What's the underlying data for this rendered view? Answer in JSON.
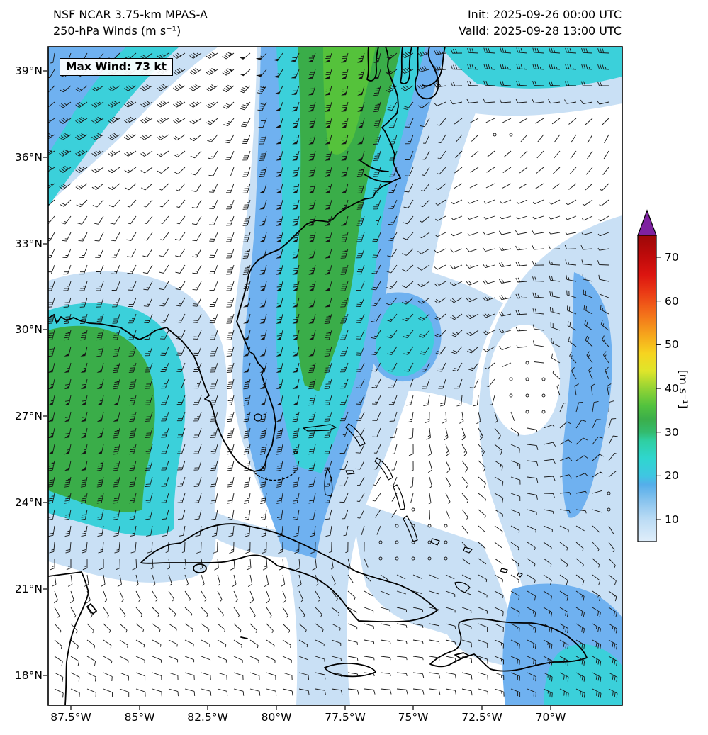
{
  "header": {
    "title_line1": "NSF NCAR 3.75-km MPAS-A",
    "title_line2": "250-hPa Winds (m s⁻¹)",
    "init_label": "Init: 2025-09-26 00:00 UTC",
    "valid_label": "Valid: 2025-09-28 13:00 UTC"
  },
  "map": {
    "max_wind_label": "Max Wind: 73 kt",
    "y_ticks": [
      "39°N",
      "36°N",
      "33°N",
      "30°N",
      "27°N",
      "24°N",
      "21°N",
      "18°N"
    ],
    "x_ticks": [
      "87.5°W",
      "85°W",
      "82.5°W",
      "80°W",
      "77.5°W",
      "75°W",
      "72.5°W",
      "70°W"
    ]
  },
  "colorbar": {
    "label": "[m s⁻¹]",
    "ticks": [
      "70",
      "60",
      "50",
      "40",
      "30",
      "20",
      "10"
    ],
    "arrow_color": "#7e22a0",
    "stops": [
      {
        "v": 5,
        "c": "#e0eefa"
      },
      {
        "v": 10,
        "c": "#bcdcf5"
      },
      {
        "v": 14,
        "c": "#8cc5ee"
      },
      {
        "v": 18,
        "c": "#55aeea"
      },
      {
        "v": 20,
        "c": "#3fc6e2"
      },
      {
        "v": 24,
        "c": "#2fd6cf"
      },
      {
        "v": 28,
        "c": "#2fcfa2"
      },
      {
        "v": 30,
        "c": "#33bb6e"
      },
      {
        "v": 33,
        "c": "#3bae4a"
      },
      {
        "v": 36,
        "c": "#52c23e"
      },
      {
        "v": 40,
        "c": "#93d334"
      },
      {
        "v": 44,
        "c": "#dfe52a"
      },
      {
        "v": 48,
        "c": "#f6d420"
      },
      {
        "v": 52,
        "c": "#f6a81c"
      },
      {
        "v": 57,
        "c": "#f3701a"
      },
      {
        "v": 62,
        "c": "#ea3a15"
      },
      {
        "v": 66,
        "c": "#dc1510"
      },
      {
        "v": 70,
        "c": "#c00b0b"
      },
      {
        "v": 75,
        "c": "#9c0808"
      }
    ]
  },
  "palette": {
    "10": "#c9e0f5",
    "15": "#6fb1f0",
    "20": "#3bd0da",
    "30": "#3aad49",
    "35": "#55c23b",
    "barb": "#161616",
    "coast": "#000000"
  },
  "chart_data": {
    "type": "heatmap",
    "subtype": "filled-contour wind speed map with wind barb overlay",
    "title": "NSF NCAR 3.75-km MPAS-A — 250-hPa Winds (m s⁻¹)",
    "init": "2025-09-26 00:00 UTC",
    "valid": "2025-09-28 13:00 UTC",
    "max_wind": "73 kt",
    "x_ticks": [
      "87.5°W",
      "85°W",
      "82.5°W",
      "80°W",
      "77.5°W",
      "75°W",
      "72.5°W",
      "70°W"
    ],
    "y_ticks": [
      "39°N",
      "36°N",
      "33°N",
      "30°N",
      "27°N",
      "24°N",
      "21°N",
      "18°N"
    ],
    "colorbar": {
      "label": "[m s⁻¹]",
      "ticks": [
        10,
        20,
        30,
        40,
        50,
        60,
        70
      ],
      "min": 5,
      "max": 75,
      "extend_above_color": "purple"
    },
    "features": [
      {
        "name": "jet streak",
        "desc": "band of 25-38 m s⁻¹ winds (green core flanked by cyan and blue) sweeping from near the Florida Straits north-northeastward over Georgia, the Carolinas and the Mid-Atlantic coast",
        "approx_loc": "82°W-75°W, 26°N-40°N"
      },
      {
        "name": "western wind max",
        "desc": "secondary 25-33 m s⁻¹ maximum (green/cyan) along the far western edge over the Gulf of Mexico",
        "approx_loc": "88°W, 24°N-31°N"
      },
      {
        "name": "northwest corner band",
        "desc": "cyan/blue jet segment clipping the top-left corner",
        "approx_loc": "88°W-85°W, 38°N-40°N"
      },
      {
        "name": "calm anticyclonic eddy",
        "desc": "near-calm region with circled calm barbs surrounded by light-blue 10-20 m s⁻¹ flow",
        "approx_loc": "72.5°W, 28°N-30°N"
      },
      {
        "name": "moderate winds",
        "desc": "10-20 m s⁻¹ (light blue / blue, cyan patch in far southeast corner) over the western Atlantic, Bahamas and northeast Caribbean",
        "approx_loc": "76°W-68°W, 18°N-34°N"
      }
    ],
    "overlay": "wind barbs (pennant = 50 kt, full barb = 10 kt, half barb = 5 kt); calm drawn as open circles",
    "basemap": "coastlines: US Gulf/Atlantic coast, Florida, Chesapeake Bay, Cuba, Bahamas, Hispaniola, Jamaica, Yucatán"
  }
}
